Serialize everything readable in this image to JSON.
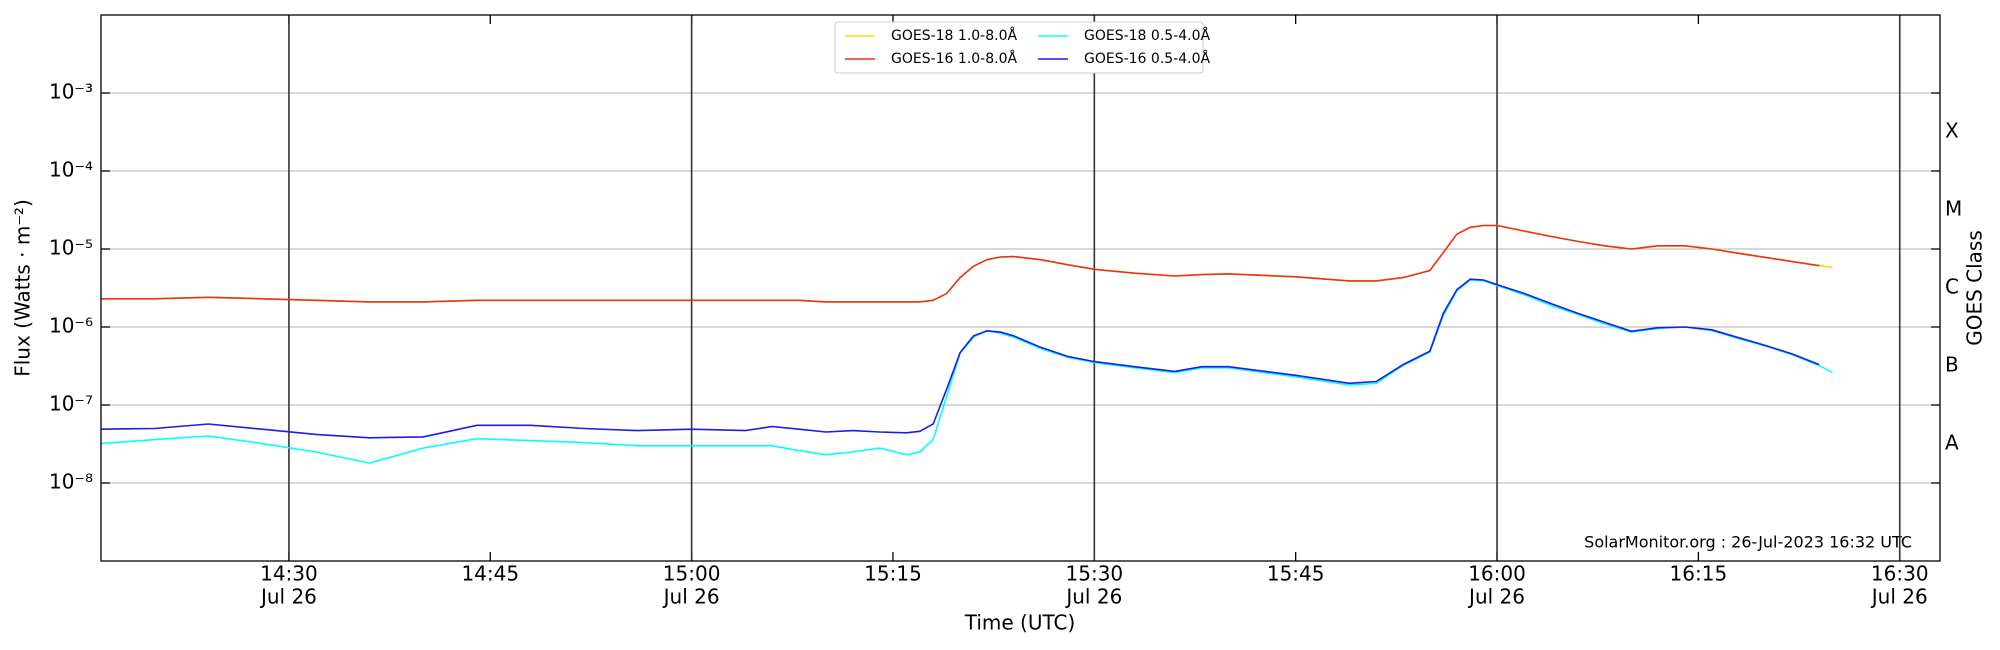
{
  "chart_data": {
    "type": "line",
    "yscale": "log",
    "xlabel": "Time (UTC)",
    "ylabel": "Flux (Watts · m⁻²)",
    "y2label": "GOES Class",
    "annotation": "SolarMonitor.org : 26-Jul-2023 16:32 UTC",
    "legend": "upper center",
    "grid": true,
    "xlim": [
      "14:16",
      "16:33"
    ],
    "ylim": [
      1e-09,
      0.01
    ],
    "y2lim": [
      1e-09,
      0.01
    ],
    "xticks": [
      {
        "value": "14:30",
        "label": "14:30",
        "date": "Jul 26"
      },
      {
        "value": "14:45",
        "label": "14:45"
      },
      {
        "value": "15:00",
        "label": "15:00",
        "date": "Jul 26"
      },
      {
        "value": "15:15",
        "label": "15:15"
      },
      {
        "value": "15:30",
        "label": "15:30",
        "date": "Jul 26"
      },
      {
        "value": "15:45",
        "label": "15:45"
      },
      {
        "value": "16:00",
        "label": "16:00",
        "date": "Jul 26"
      },
      {
        "value": "16:15",
        "label": "16:15"
      },
      {
        "value": "16:30",
        "label": "16:30",
        "date": "Jul 26"
      }
    ],
    "yticks": [
      {
        "value": 1e-08,
        "label": "10⁻⁸"
      },
      {
        "value": 1e-07,
        "label": "10⁻⁷"
      },
      {
        "value": 1e-06,
        "label": "10⁻⁶"
      },
      {
        "value": 1e-05,
        "label": "10⁻⁵"
      },
      {
        "value": 0.0001,
        "label": "10⁻⁴"
      },
      {
        "value": 0.001,
        "label": "10⁻³"
      }
    ],
    "y2ticks": [
      {
        "value": 3.16e-08,
        "label": "A"
      },
      {
        "value": 3.16e-07,
        "label": "B"
      },
      {
        "value": 3.16e-06,
        "label": "C"
      },
      {
        "value": 3.16e-05,
        "label": "M"
      },
      {
        "value": 0.000316,
        "label": "X"
      }
    ],
    "vlines": [
      "14:30",
      "15:00",
      "15:30",
      "16:00",
      "16:30"
    ],
    "x": [
      "14:16",
      "14:20",
      "14:24",
      "14:28",
      "14:32",
      "14:36",
      "14:40",
      "14:44",
      "14:48",
      "14:52",
      "14:56",
      "15:00",
      "15:04",
      "15:06",
      "15:08",
      "15:10",
      "15:12",
      "15:14",
      "15:16",
      "15:17",
      "15:18",
      "15:19",
      "15:20",
      "15:21",
      "15:22",
      "15:23",
      "15:24",
      "15:26",
      "15:28",
      "15:30",
      "15:33",
      "15:36",
      "15:38",
      "15:40",
      "15:45",
      "15:49",
      "15:51",
      "15:53",
      "15:55",
      "15:56",
      "15:57",
      "15:58",
      "15:59",
      "16:00",
      "16:02",
      "16:04",
      "16:06",
      "16:08",
      "16:10",
      "16:12",
      "16:14",
      "16:16",
      "16:18",
      "16:20",
      "16:22",
      "16:24",
      "16:25"
    ],
    "series": [
      {
        "name": "GOES-18 1.0-8.0Å",
        "color": "#ffd700",
        "values": [
          2.3e-06,
          2.3e-06,
          2.4e-06,
          2.3e-06,
          2.2e-06,
          2.1e-06,
          2.1e-06,
          2.2e-06,
          2.2e-06,
          2.2e-06,
          2.2e-06,
          2.2e-06,
          2.2e-06,
          2.2e-06,
          2.2e-06,
          2.1e-06,
          2.1e-06,
          2.1e-06,
          2.1e-06,
          2.1e-06,
          2.2e-06,
          2.7e-06,
          4.3e-06,
          6e-06,
          7.3e-06,
          7.9e-06,
          8e-06,
          7.3e-06,
          6.3e-06,
          5.5e-06,
          4.9e-06,
          4.5e-06,
          4.7e-06,
          4.8e-06,
          4.4e-06,
          3.9e-06,
          3.9e-06,
          4.3e-06,
          5.3e-06,
          9e-06,
          1.55e-05,
          1.9e-05,
          2e-05,
          2e-05,
          1.7e-05,
          1.45e-05,
          1.25e-05,
          1.1e-05,
          1e-05,
          1.1e-05,
          1.1e-05,
          1e-05,
          8.8e-06,
          7.8e-06,
          6.9e-06,
          6.1e-06,
          5.8e-06
        ]
      },
      {
        "name": "GOES-16 1.0-8.0Å",
        "color": "#e8341c",
        "values": [
          2.3e-06,
          2.3e-06,
          2.4e-06,
          2.3e-06,
          2.2e-06,
          2.1e-06,
          2.1e-06,
          2.2e-06,
          2.2e-06,
          2.2e-06,
          2.2e-06,
          2.2e-06,
          2.2e-06,
          2.2e-06,
          2.2e-06,
          2.1e-06,
          2.1e-06,
          2.1e-06,
          2.1e-06,
          2.1e-06,
          2.2e-06,
          2.7e-06,
          4.3e-06,
          6e-06,
          7.3e-06,
          7.9e-06,
          8e-06,
          7.3e-06,
          6.3e-06,
          5.5e-06,
          4.9e-06,
          4.5e-06,
          4.7e-06,
          4.8e-06,
          4.4e-06,
          3.9e-06,
          3.9e-06,
          4.3e-06,
          5.3e-06,
          9e-06,
          1.55e-05,
          1.9e-05,
          2e-05,
          2e-05,
          1.7e-05,
          1.45e-05,
          1.25e-05,
          1.1e-05,
          1e-05,
          1.1e-05,
          1.1e-05,
          1e-05,
          8.8e-06,
          7.8e-06,
          6.9e-06,
          6.1e-06,
          null
        ]
      },
      {
        "name": "GOES-18 0.5-4.0Å",
        "color": "#00ffff",
        "values": [
          3.2e-08,
          3.6e-08,
          4e-08,
          3.2e-08,
          2.5e-08,
          1.8e-08,
          2.8e-08,
          3.7e-08,
          3.5e-08,
          3.3e-08,
          3e-08,
          3e-08,
          3e-08,
          3e-08,
          2.6e-08,
          2.3e-08,
          2.5e-08,
          2.8e-08,
          2.3e-08,
          2.5e-08,
          3.6e-08,
          1.3e-07,
          4.6e-07,
          7.4e-07,
          9e-07,
          8.3e-07,
          7.4e-07,
          5.3e-07,
          4.1e-07,
          3.5e-07,
          3e-07,
          2.6e-07,
          3e-07,
          3e-07,
          2.3e-07,
          1.8e-07,
          1.9e-07,
          3.2e-07,
          4.8e-07,
          1.4e-06,
          2.9e-06,
          4e-06,
          3.9e-06,
          3.4e-06,
          2.6e-06,
          1.9e-06,
          1.45e-06,
          1.1e-06,
          8.6e-07,
          9.6e-07,
          1e-06,
          9e-07,
          7.1e-07,
          5.7e-07,
          4.4e-07,
          3.2e-07,
          2.6e-07
        ]
      },
      {
        "name": "GOES-16 0.5-4.0Å",
        "color": "#1c1ce8",
        "values": [
          4.9e-08,
          5e-08,
          5.7e-08,
          4.9e-08,
          4.2e-08,
          3.8e-08,
          3.9e-08,
          5.5e-08,
          5.5e-08,
          5e-08,
          4.7e-08,
          4.9e-08,
          4.7e-08,
          5.3e-08,
          4.9e-08,
          4.5e-08,
          4.7e-08,
          4.5e-08,
          4.4e-08,
          4.6e-08,
          5.7e-08,
          1.6e-07,
          4.7e-07,
          7.7e-07,
          8.9e-07,
          8.6e-07,
          7.7e-07,
          5.5e-07,
          4.2e-07,
          3.6e-07,
          3.1e-07,
          2.7e-07,
          3.1e-07,
          3.1e-07,
          2.4e-07,
          1.9e-07,
          2e-07,
          3.3e-07,
          4.9e-07,
          1.5e-06,
          3e-06,
          4.1e-06,
          4e-06,
          3.5e-06,
          2.7e-06,
          2e-06,
          1.5e-06,
          1.15e-06,
          8.8e-07,
          9.8e-07,
          1e-06,
          9.2e-07,
          7.3e-07,
          5.8e-07,
          4.5e-07,
          3.3e-07,
          null
        ]
      }
    ]
  }
}
